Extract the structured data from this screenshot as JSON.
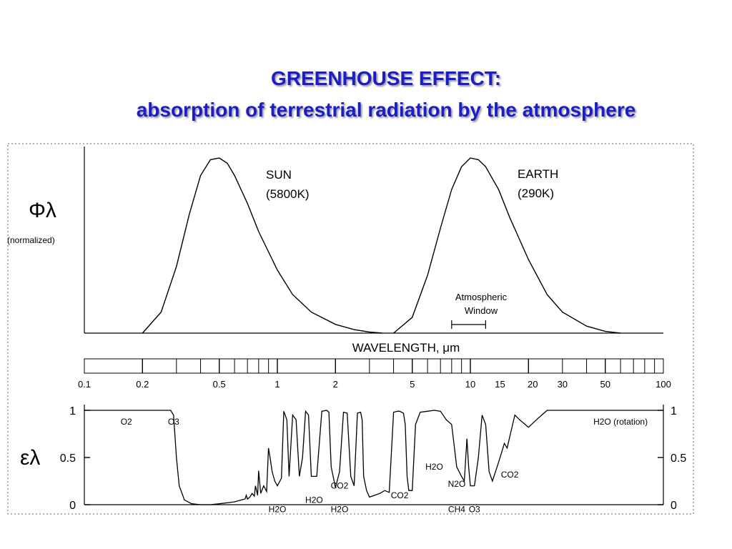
{
  "title": {
    "line1": "GREENHOUSE EFFECT:",
    "line2": "absorption of terrestrial radiation by the atmosphere"
  },
  "colors": {
    "title": "#1c1cc8",
    "curves": "#000000"
  },
  "chart_data": [
    {
      "type": "line",
      "panel": "emission",
      "ylabel_symbol": "Φλ",
      "ylabel_note": "(normalized)",
      "xlabel": "WAVELENGTH, μm",
      "x_scale": "log",
      "xlim": [
        0.1,
        100
      ],
      "ylim": [
        0,
        1
      ],
      "x_tick_labels": [
        "0.1",
        "0.2",
        "0.5",
        "1",
        "2",
        "5",
        "10",
        "15",
        "20",
        "30",
        "50",
        "100"
      ],
      "x_tick_values": [
        0.1,
        0.2,
        0.5,
        1,
        2,
        5,
        10,
        15,
        20,
        30,
        50,
        100
      ],
      "series": [
        {
          "name": "SUN",
          "name_sub": "(5800K)",
          "x": [
            0.2,
            0.25,
            0.3,
            0.35,
            0.4,
            0.45,
            0.5,
            0.55,
            0.6,
            0.7,
            0.8,
            1.0,
            1.2,
            1.5,
            2.0,
            2.5,
            3.0,
            3.5
          ],
          "y": [
            0.0,
            0.12,
            0.38,
            0.68,
            0.9,
            0.99,
            1.0,
            0.97,
            0.9,
            0.74,
            0.58,
            0.36,
            0.22,
            0.12,
            0.05,
            0.02,
            0.006,
            0.0
          ]
        },
        {
          "name": "EARTH",
          "name_sub": "(290K)",
          "x": [
            4.0,
            5.0,
            6.0,
            7.0,
            8.0,
            9.0,
            10.0,
            11.0,
            12.0,
            14.0,
            16.0,
            20.0,
            25.0,
            30.0,
            40.0,
            50.0,
            60.0
          ],
          "y": [
            0.0,
            0.09,
            0.33,
            0.6,
            0.82,
            0.95,
            1.0,
            0.99,
            0.95,
            0.82,
            0.66,
            0.42,
            0.22,
            0.12,
            0.04,
            0.01,
            0.0
          ]
        }
      ],
      "annotations": [
        {
          "text_line1": "Atmospheric",
          "text_line2": "Window",
          "x_range": [
            8,
            12
          ]
        }
      ]
    },
    {
      "type": "line",
      "panel": "absorption",
      "ylabel_symbol": "ελ",
      "x_scale": "log",
      "xlim": [
        0.1,
        100
      ],
      "ylim": [
        0,
        1
      ],
      "y_tick_labels": [
        "0",
        "0.5",
        "1"
      ],
      "y_tick_values": [
        0,
        0.5,
        1
      ],
      "series": [
        {
          "name": "absorptivity",
          "x": [
            0.1,
            0.2,
            0.28,
            0.29,
            0.3,
            0.31,
            0.33,
            0.36,
            0.4,
            0.45,
            0.5,
            0.55,
            0.6,
            0.65,
            0.68,
            0.69,
            0.7,
            0.72,
            0.74,
            0.76,
            0.77,
            0.79,
            0.8,
            0.82,
            0.85,
            0.88,
            0.9,
            0.92,
            0.94,
            0.97,
            1.0,
            1.05,
            1.08,
            1.12,
            1.15,
            1.2,
            1.25,
            1.3,
            1.35,
            1.4,
            1.45,
            1.5,
            1.6,
            1.7,
            1.8,
            1.85,
            1.9,
            2.0,
            2.1,
            2.2,
            2.3,
            2.4,
            2.5,
            2.6,
            2.7,
            2.75,
            2.8,
            2.9,
            3.0,
            3.2,
            3.4,
            3.6,
            3.8,
            4.0,
            4.2,
            4.3,
            4.4,
            4.5,
            4.6,
            4.7,
            4.8,
            5.0,
            5.2,
            5.5,
            6.0,
            6.5,
            7.0,
            7.5,
            8.0,
            8.5,
            9.0,
            9.3,
            9.6,
            9.8,
            10.0,
            10.5,
            11.0,
            11.5,
            12.0,
            12.5,
            13.0,
            13.5,
            14.0,
            14.5,
            15.0,
            15.5,
            16.0,
            17.0,
            18.0,
            20.0,
            22.0,
            25.0,
            30.0,
            50.0,
            100.0
          ],
          "y": [
            1.0,
            1.0,
            1.0,
            0.95,
            0.5,
            0.2,
            0.05,
            0.01,
            0.0,
            0.0,
            0.01,
            0.02,
            0.03,
            0.05,
            0.06,
            0.1,
            0.06,
            0.08,
            0.12,
            0.09,
            0.2,
            0.1,
            0.36,
            0.12,
            0.2,
            0.14,
            0.6,
            0.48,
            0.35,
            0.25,
            0.2,
            0.28,
            0.99,
            0.9,
            0.3,
            0.95,
            0.9,
            0.3,
            0.5,
            0.99,
            0.95,
            0.3,
            0.3,
            0.99,
            1.0,
            0.98,
            0.4,
            0.18,
            0.35,
            0.98,
            0.97,
            0.3,
            0.2,
            0.97,
            0.98,
            0.9,
            0.3,
            0.15,
            0.08,
            0.1,
            0.12,
            0.15,
            0.13,
            0.98,
            0.99,
            0.99,
            0.98,
            0.97,
            0.85,
            0.3,
            0.15,
            0.15,
            0.85,
            0.98,
            0.99,
            1.0,
            0.99,
            0.9,
            0.85,
            0.4,
            0.3,
            0.25,
            0.7,
            0.4,
            0.2,
            0.2,
            0.5,
            0.95,
            0.85,
            0.35,
            0.25,
            0.35,
            0.45,
            0.55,
            0.65,
            0.6,
            0.72,
            0.95,
            0.9,
            0.82,
            0.9,
            1.0,
            1.0,
            1.0,
            1.0
          ]
        }
      ],
      "labels": [
        {
          "text": "O2",
          "x": 0.165,
          "y": 0.88
        },
        {
          "text": "O3",
          "x": 0.29,
          "y": 0.88
        },
        {
          "text": "H2O (rotation)",
          "x": 60,
          "y": 0.88
        },
        {
          "text": "H2O",
          "x": 1.0,
          "y": -0.05
        },
        {
          "text": "H2O",
          "x": 1.55,
          "y": 0.05
        },
        {
          "text": "CO2",
          "x": 2.1,
          "y": 0.2
        },
        {
          "text": "H2O",
          "x": 2.1,
          "y": -0.05
        },
        {
          "text": "CO2",
          "x": 4.3,
          "y": 0.1
        },
        {
          "text": "H2O",
          "x": 6.5,
          "y": 0.4
        },
        {
          "text": "N2O",
          "x": 8.5,
          "y": 0.22
        },
        {
          "text": "CH4",
          "x": 8.5,
          "y": -0.05
        },
        {
          "text": "O3",
          "x": 10.5,
          "y": -0.05
        },
        {
          "text": "CO2",
          "x": 16,
          "y": 0.32
        }
      ]
    }
  ]
}
